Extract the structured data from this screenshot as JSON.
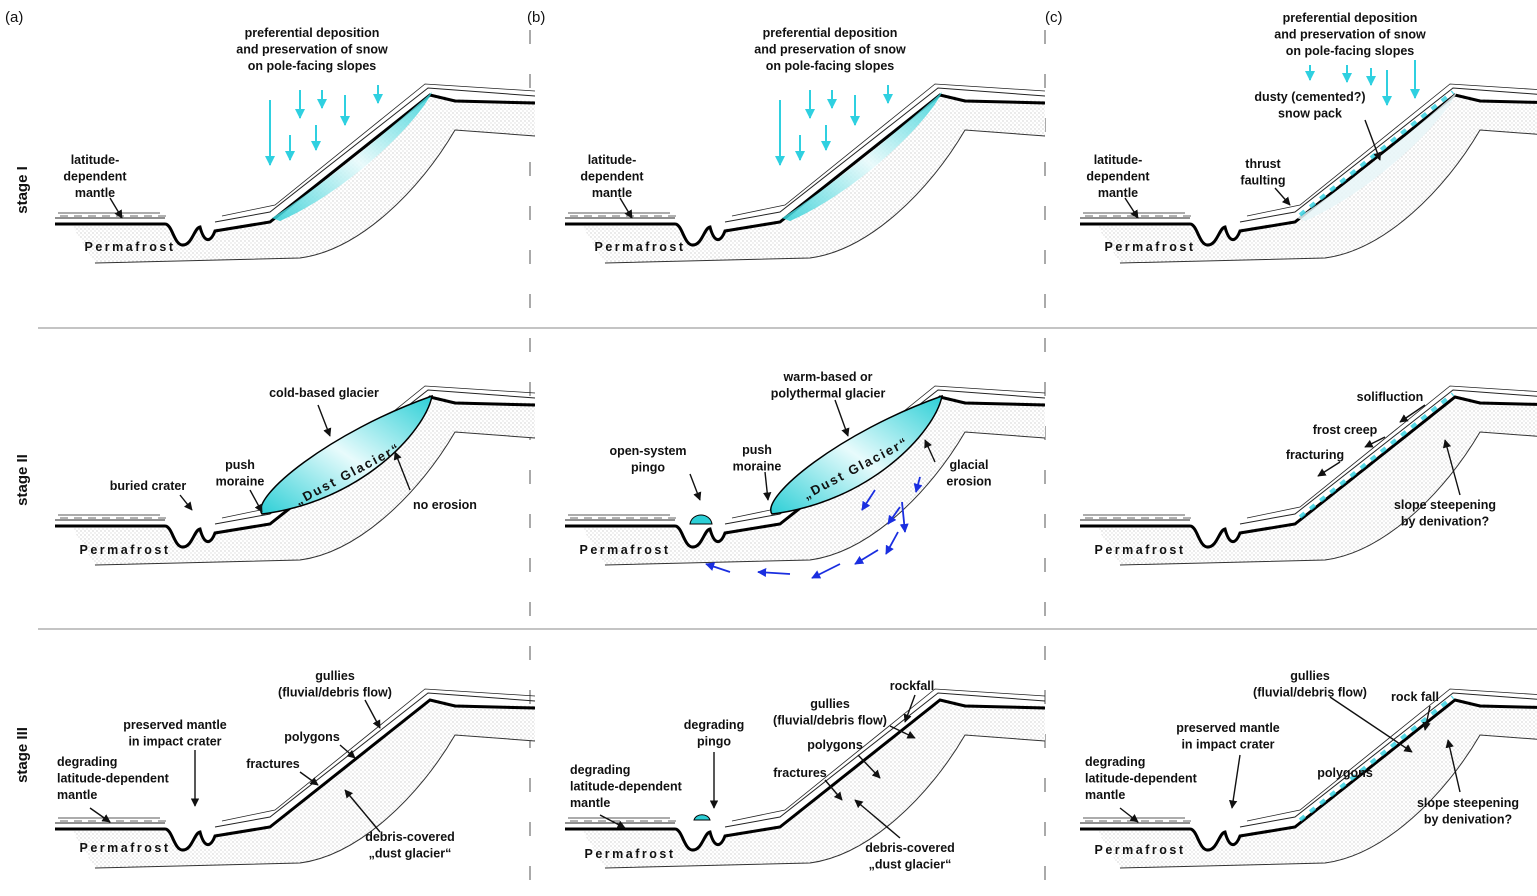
{
  "columns": [
    "(a)",
    "(b)",
    "(c)"
  ],
  "rows": [
    "stage I",
    "stage II",
    "stage III"
  ],
  "cells": [
    {
      "labels": [
        [
          "preferential deposition",
          "and preservation of snow",
          "on pole-facing slopes"
        ],
        [
          "latitude-",
          "dependent",
          "mantle"
        ]
      ],
      "ground": "Permafrost"
    },
    {
      "labels": [
        [
          "preferential deposition",
          "and preservation of snow",
          "on pole-facing slopes"
        ],
        [
          "latitude-",
          "dependent",
          "mantle"
        ]
      ],
      "ground": "Permafrost"
    },
    {
      "labels": [
        [
          "preferential deposition",
          "and preservation of snow",
          "on pole-facing slopes"
        ],
        [
          "dusty (cemented?)",
          "snow pack"
        ],
        [
          "latitude-",
          "dependent",
          "mantle"
        ],
        [
          "thrust",
          "faulting"
        ]
      ],
      "ground": "Permafrost"
    },
    {
      "labels": [
        [
          "cold-based glacier"
        ],
        [
          "push",
          "moraine"
        ],
        [
          "buried crater"
        ],
        [
          "no erosion"
        ]
      ],
      "ground": "Permafrost",
      "glacier": "„Dust Glacier“"
    },
    {
      "labels": [
        [
          "warm-based or",
          "polythermal glacier"
        ],
        [
          "open-system",
          "pingo"
        ],
        [
          "push",
          "moraine"
        ],
        [
          "glacial",
          "erosion"
        ]
      ],
      "ground": "Permafrost",
      "glacier": "„Dust Glacier“"
    },
    {
      "labels": [
        [
          "solifluction"
        ],
        [
          "frost creep"
        ],
        [
          "fracturing"
        ],
        [
          "slope steepening",
          "by denivation?"
        ]
      ],
      "ground": "Permafrost"
    },
    {
      "labels": [
        [
          "gullies",
          "(fluvial/debris flow)"
        ],
        [
          "preserved mantle",
          "in impact crater"
        ],
        [
          "polygons"
        ],
        [
          "fractures"
        ],
        [
          "degrading",
          "latitude-dependent",
          "mantle"
        ],
        [
          "debris-covered",
          "„dust glacier“"
        ]
      ],
      "ground": "Permafrost"
    },
    {
      "labels": [
        [
          "rockfall"
        ],
        [
          "gullies",
          "(fluvial/debris flow)"
        ],
        [
          "polygons"
        ],
        [
          "degrading",
          "pingo"
        ],
        [
          "fractures"
        ],
        [
          "degrading",
          "latitude-dependent",
          "mantle"
        ],
        [
          "debris-covered",
          "„dust glacier“"
        ]
      ],
      "ground": "Permafrost"
    },
    {
      "labels": [
        [
          "gullies",
          "(fluvial/debris flow)"
        ],
        [
          "rock fall"
        ],
        [
          "preserved mantle",
          "in impact crater"
        ],
        [
          "polygons"
        ],
        [
          "degrading",
          "latitude-dependent",
          "mantle"
        ],
        [
          "slope steepening",
          "by denivation?"
        ]
      ],
      "ground": "Permafrost"
    }
  ]
}
